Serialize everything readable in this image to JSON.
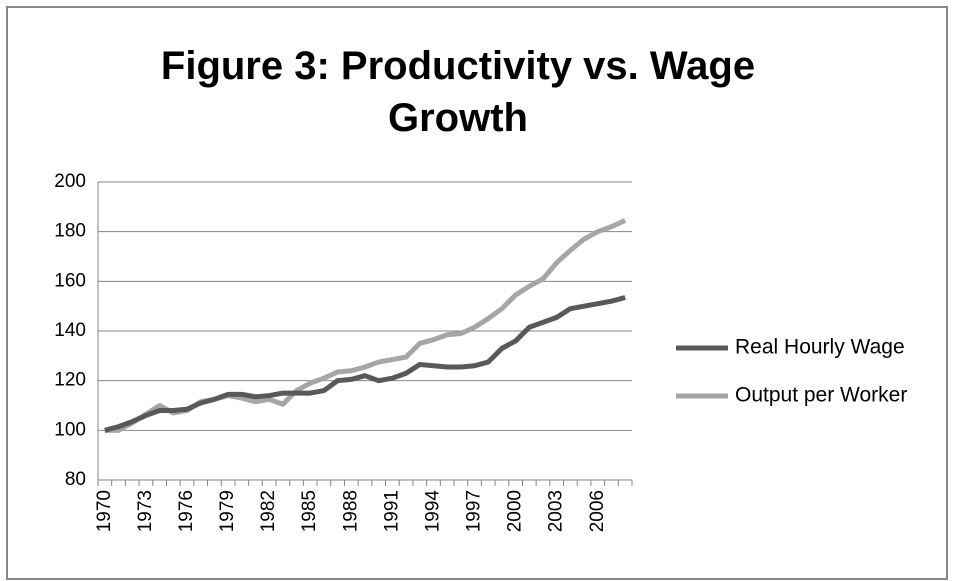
{
  "chart_data": {
    "type": "line",
    "title": "Figure 3: Productivity vs. Wage Growth",
    "categories": [
      "1970",
      null,
      null,
      "1973",
      null,
      null,
      "1976",
      null,
      null,
      "1979",
      null,
      null,
      "1982",
      null,
      null,
      "1985",
      null,
      null,
      "1988",
      null,
      null,
      "1991",
      null,
      null,
      "1994",
      null,
      null,
      "1997",
      null,
      null,
      "2000",
      null,
      null,
      "2003",
      null,
      null,
      "2006",
      null,
      null
    ],
    "series": [
      {
        "name": "Real Hourly Wage",
        "color": "#595959",
        "values": [
          100,
          101.5,
          103.5,
          106,
          108,
          108,
          108.5,
          111,
          112.5,
          114.5,
          114.5,
          113.5,
          114,
          115,
          115,
          115,
          116,
          120,
          120.5,
          122,
          120,
          121,
          123,
          126.5,
          126,
          125.5,
          125.5,
          126,
          127.5,
          133,
          136,
          141.5,
          143.5,
          145.5,
          149,
          150,
          151,
          152,
          153.5
        ]
      },
      {
        "name": "Output per Worker",
        "color": "#a6a6a6",
        "values": [
          100,
          100,
          103,
          106.5,
          110,
          107,
          108,
          111.5,
          112.5,
          114,
          113,
          111.5,
          112.5,
          110.5,
          116,
          119,
          121,
          123.5,
          124,
          125.5,
          127.5,
          128.5,
          129.5,
          135,
          136.5,
          138.5,
          139,
          141.5,
          145,
          149,
          154.5,
          158,
          161,
          167.5,
          172.5,
          177,
          180,
          182,
          184.5
        ]
      }
    ],
    "ylim": [
      80,
      200
    ],
    "yticks": [
      80,
      100,
      120,
      140,
      160,
      180,
      200
    ],
    "grid": true,
    "legend": "right"
  }
}
